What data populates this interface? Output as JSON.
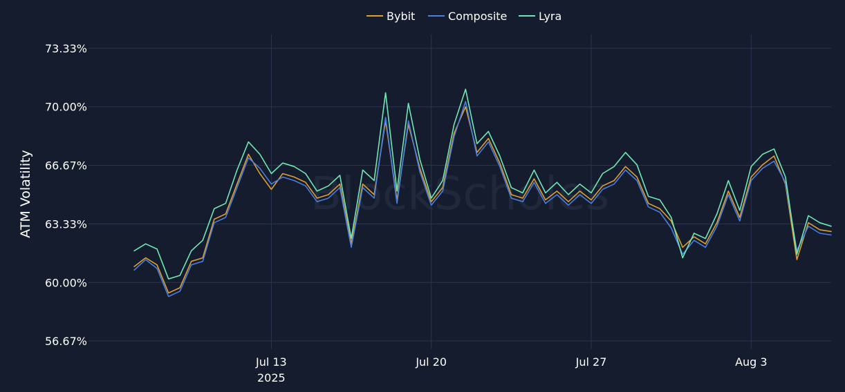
{
  "chart_data": {
    "type": "line",
    "title": "",
    "xlabel": "",
    "ylabel": "ATM Volatility",
    "watermark": "BlockScholes",
    "legend_position": "top-center",
    "grid": true,
    "colors": {
      "background": "#141c2e",
      "grid": "#2a3550",
      "Bybit": "#e0a030",
      "Composite": "#4a7fe0",
      "Lyra": "#6fe8b5"
    },
    "x_range": [
      "2025-07-05T00:00",
      "2025-08-06T12:00"
    ],
    "y_range": [
      56.67,
      73.33
    ],
    "y_ticks": [
      56.67,
      60.0,
      63.33,
      66.67,
      70.0,
      73.33
    ],
    "y_tick_labels": [
      "56.67%",
      "60.00%",
      "63.33%",
      "66.67%",
      "70.00%",
      "73.33%"
    ],
    "x_ticks": [
      {
        "date": "2025-07-13",
        "label": "Jul 13",
        "sublabel": "2025"
      },
      {
        "date": "2025-07-20",
        "label": "Jul 20",
        "sublabel": ""
      },
      {
        "date": "2025-07-27",
        "label": "Jul 27",
        "sublabel": ""
      },
      {
        "date": "2025-08-03",
        "label": "Aug 3",
        "sublabel": ""
      }
    ],
    "x": [
      "2025-07-07T00:00",
      "2025-07-07T12:00",
      "2025-07-08T00:00",
      "2025-07-08T12:00",
      "2025-07-09T00:00",
      "2025-07-09T12:00",
      "2025-07-10T00:00",
      "2025-07-10T12:00",
      "2025-07-11T00:00",
      "2025-07-11T12:00",
      "2025-07-12T00:00",
      "2025-07-12T12:00",
      "2025-07-13T00:00",
      "2025-07-13T12:00",
      "2025-07-14T00:00",
      "2025-07-14T12:00",
      "2025-07-15T00:00",
      "2025-07-15T12:00",
      "2025-07-16T00:00",
      "2025-07-16T12:00",
      "2025-07-17T00:00",
      "2025-07-17T12:00",
      "2025-07-18T00:00",
      "2025-07-18T12:00",
      "2025-07-19T00:00",
      "2025-07-19T12:00",
      "2025-07-20T00:00",
      "2025-07-20T12:00",
      "2025-07-21T00:00",
      "2025-07-21T12:00",
      "2025-07-22T00:00",
      "2025-07-22T12:00",
      "2025-07-23T00:00",
      "2025-07-23T12:00",
      "2025-07-24T00:00",
      "2025-07-24T12:00",
      "2025-07-25T00:00",
      "2025-07-25T12:00",
      "2025-07-26T00:00",
      "2025-07-26T12:00",
      "2025-07-27T00:00",
      "2025-07-27T12:00",
      "2025-07-28T00:00",
      "2025-07-28T12:00",
      "2025-07-29T00:00",
      "2025-07-29T12:00",
      "2025-07-30T00:00",
      "2025-07-30T12:00",
      "2025-07-31T00:00",
      "2025-07-31T12:00",
      "2025-08-01T00:00",
      "2025-08-01T12:00",
      "2025-08-02T00:00",
      "2025-08-02T12:00",
      "2025-08-03T00:00",
      "2025-08-03T12:00",
      "2025-08-04T00:00",
      "2025-08-04T12:00",
      "2025-08-05T00:00",
      "2025-08-05T12:00",
      "2025-08-06T00:00",
      "2025-08-06T12:00"
    ],
    "series": [
      {
        "name": "Bybit",
        "values": [
          60.9,
          61.4,
          61.0,
          59.4,
          59.7,
          61.2,
          61.4,
          63.6,
          63.9,
          65.6,
          67.3,
          66.2,
          65.3,
          66.2,
          66.0,
          65.7,
          64.8,
          65.0,
          65.6,
          62.2,
          65.6,
          65.0,
          69.2,
          64.7,
          69.0,
          66.5,
          64.6,
          65.4,
          68.5,
          70.0,
          67.4,
          68.2,
          66.8,
          65.0,
          64.8,
          65.9,
          64.7,
          65.2,
          64.6,
          65.2,
          64.7,
          65.5,
          65.8,
          66.6,
          66.0,
          64.5,
          64.2,
          63.5,
          62.0,
          62.6,
          62.2,
          63.4,
          65.2,
          63.7,
          66.0,
          66.7,
          67.2,
          65.6,
          61.3,
          63.4,
          63.0,
          62.9
        ]
      },
      {
        "name": "Composite",
        "values": [
          60.7,
          61.3,
          60.8,
          59.2,
          59.5,
          61.0,
          61.2,
          63.4,
          63.7,
          65.4,
          67.1,
          66.5,
          65.6,
          66.0,
          65.8,
          65.5,
          64.6,
          64.8,
          65.4,
          62.0,
          65.4,
          64.8,
          69.4,
          64.5,
          69.2,
          66.3,
          64.4,
          65.2,
          68.3,
          70.3,
          67.2,
          68.0,
          66.6,
          64.8,
          64.6,
          65.7,
          64.5,
          65.0,
          64.4,
          65.0,
          64.5,
          65.3,
          65.6,
          66.4,
          65.8,
          64.3,
          64.0,
          63.1,
          61.6,
          62.4,
          62.0,
          63.2,
          65.0,
          63.5,
          65.8,
          66.5,
          66.9,
          65.7,
          61.8,
          63.2,
          62.8,
          62.7
        ]
      },
      {
        "name": "Lyra",
        "values": [
          61.8,
          62.2,
          61.9,
          60.2,
          60.4,
          61.8,
          62.4,
          64.2,
          64.5,
          66.4,
          68.0,
          67.3,
          66.2,
          66.8,
          66.6,
          66.2,
          65.2,
          65.5,
          66.1,
          62.5,
          66.4,
          65.8,
          70.8,
          65.2,
          70.2,
          67.0,
          64.8,
          65.8,
          69.0,
          71.0,
          67.9,
          68.6,
          67.2,
          65.4,
          65.1,
          66.4,
          65.1,
          65.7,
          65.0,
          65.6,
          65.1,
          66.2,
          66.6,
          67.4,
          66.7,
          64.9,
          64.7,
          63.7,
          61.4,
          62.8,
          62.5,
          63.9,
          65.8,
          64.1,
          66.6,
          67.3,
          67.6,
          66.0,
          61.6,
          63.8,
          63.4,
          63.2
        ]
      }
    ]
  }
}
